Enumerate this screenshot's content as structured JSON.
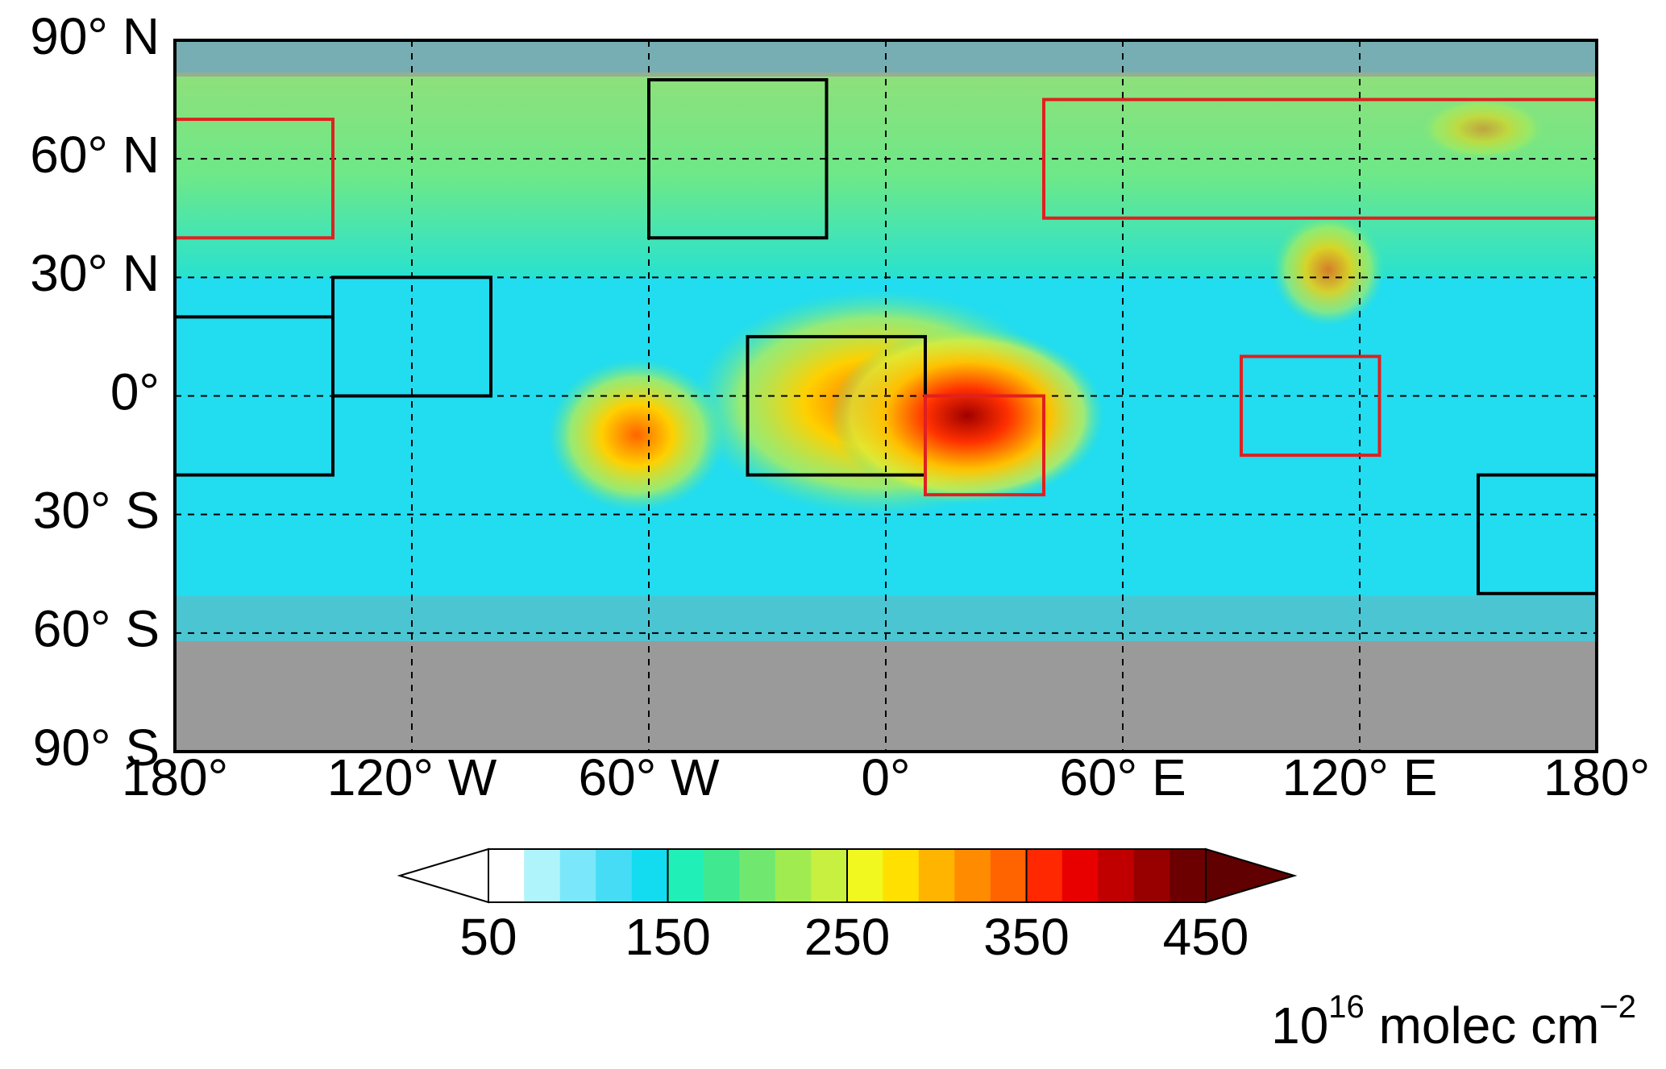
{
  "map": {
    "xlim": [
      -180,
      180
    ],
    "ylim": [
      -90,
      90
    ],
    "xticks": [
      {
        "value": -180,
        "label": "180°"
      },
      {
        "value": -120,
        "label": "120° W"
      },
      {
        "value": -60,
        "label": "60° W"
      },
      {
        "value": 0,
        "label": "0°"
      },
      {
        "value": 60,
        "label": "60° E"
      },
      {
        "value": 120,
        "label": "120° E"
      },
      {
        "value": 180,
        "label": "180°"
      }
    ],
    "yticks": [
      {
        "value": 90,
        "label": "90° N"
      },
      {
        "value": 60,
        "label": "60° N"
      },
      {
        "value": 30,
        "label": "30° N"
      },
      {
        "value": 0,
        "label": "0°"
      },
      {
        "value": -30,
        "label": "30° S"
      },
      {
        "value": -60,
        "label": "60° S"
      },
      {
        "value": -90,
        "label": "90° S"
      }
    ],
    "grid": true,
    "regions": [
      {
        "lon": [
          -180,
          -140
        ],
        "lat": [
          -20,
          20
        ],
        "color": "#000000"
      },
      {
        "lon": [
          -140,
          -100
        ],
        "lat": [
          0,
          30
        ],
        "color": "#000000"
      },
      {
        "lon": [
          -60,
          -15
        ],
        "lat": [
          40,
          80
        ],
        "color": "#000000"
      },
      {
        "lon": [
          -35,
          10
        ],
        "lat": [
          -20,
          15
        ],
        "color": "#000000"
      },
      {
        "lon": [
          150,
          180
        ],
        "lat": [
          -50,
          -20
        ],
        "color": "#000000"
      },
      {
        "lon": [
          -180,
          -140
        ],
        "lat": [
          40,
          70
        ],
        "color": "#e02020"
      },
      {
        "lon": [
          10,
          40
        ],
        "lat": [
          -25,
          0
        ],
        "color": "#e02020"
      },
      {
        "lon": [
          40,
          180
        ],
        "lat": [
          45,
          75
        ],
        "color": "#e02020"
      },
      {
        "lon": [
          90,
          125
        ],
        "lat": [
          -15,
          10
        ],
        "color": "#e02020"
      }
    ]
  },
  "colorbar": {
    "levels": [
      50,
      70,
      90,
      110,
      130,
      150,
      170,
      190,
      210,
      230,
      250,
      270,
      290,
      310,
      330,
      350,
      370,
      390,
      410,
      430,
      450
    ],
    "colors": [
      "#ffffff",
      "#b0f4fb",
      "#7ae8fa",
      "#46dcf5",
      "#14dcf0",
      "#20f0b8",
      "#40e890",
      "#70e870",
      "#a0ec50",
      "#c8f040",
      "#f0f820",
      "#ffe000",
      "#ffb400",
      "#ff8c00",
      "#ff6400",
      "#ff2800",
      "#e80000",
      "#c00000",
      "#980000",
      "#6c0000"
    ],
    "under_color": "#ffffff",
    "over_color": "#600000",
    "ticks": [
      50,
      150,
      250,
      350,
      450
    ],
    "unit_parts": [
      {
        "text": "10"
      },
      {
        "text": "16",
        "sup": true
      },
      {
        "text": " molec cm"
      },
      {
        "text": "−2",
        "sup": true
      }
    ]
  }
}
